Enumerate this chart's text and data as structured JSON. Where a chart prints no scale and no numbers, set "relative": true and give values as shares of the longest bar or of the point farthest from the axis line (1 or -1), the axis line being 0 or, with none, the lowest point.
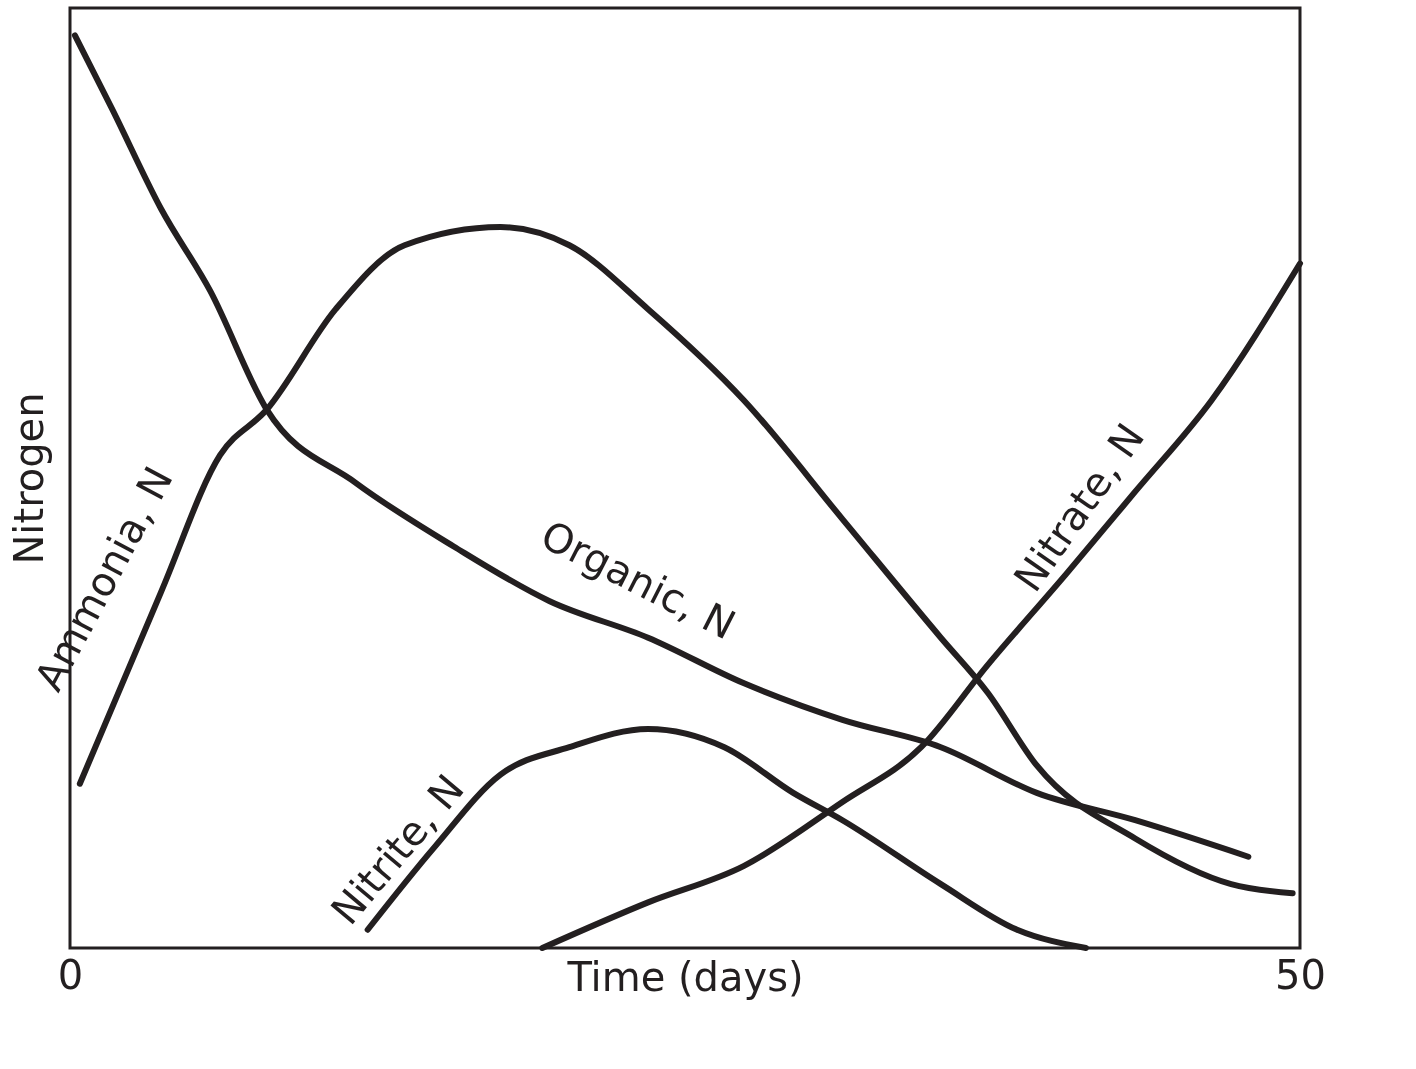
{
  "chart_data": {
    "type": "line",
    "relative": true,
    "xlabel": "Time (days)",
    "ylabel": "Nitrogen",
    "xlim": [
      0,
      50
    ],
    "xticks": [
      0,
      50
    ],
    "grid": false,
    "legend": false,
    "marker": "none",
    "line_style": "solid",
    "series": [
      {
        "name": "Organic, N",
        "color": "#231f20",
        "x": [
          0.2,
          1.7,
          3.7,
          5.7,
          8.0,
          11.6,
          15.6,
          19.5,
          23.5,
          27.4,
          31.4,
          35.4,
          39.3,
          43.3,
          47.9
        ],
        "values": [
          1.0,
          0.92,
          0.81,
          0.72,
          0.59,
          0.51,
          0.44,
          0.38,
          0.34,
          0.29,
          0.25,
          0.22,
          0.17,
          0.14,
          0.1
        ]
      },
      {
        "name": "Ammonia, N",
        "color": "#231f20",
        "x": [
          0.4,
          3.7,
          6.1,
          8.0,
          10.8,
          13.6,
          17.5,
          20.3,
          23.5,
          27.4,
          31.4,
          35.4,
          37.3,
          39.3,
          43.3,
          47.2,
          49.7
        ],
        "values": [
          0.18,
          0.39,
          0.54,
          0.59,
          0.7,
          0.77,
          0.79,
          0.77,
          0.7,
          0.6,
          0.47,
          0.34,
          0.28,
          0.2,
          0.12,
          0.07,
          0.06
        ]
      },
      {
        "name": "Nitrite, N",
        "color": "#231f20",
        "x": [
          12.1,
          14.8,
          17.5,
          20.3,
          23.5,
          26.6,
          29.4,
          31.4,
          35.4,
          38.5,
          41.3
        ],
        "values": [
          0.02,
          0.11,
          0.19,
          0.22,
          0.24,
          0.22,
          0.17,
          0.14,
          0.07,
          0.02,
          0.0
        ]
      },
      {
        "name": "Nitrate, N",
        "color": "#231f20",
        "x": [
          19.2,
          23.5,
          27.4,
          31.4,
          34.6,
          37.3,
          40.5,
          43.3,
          46.4,
          50.0
        ],
        "values": [
          0.0,
          0.05,
          0.09,
          0.16,
          0.22,
          0.31,
          0.41,
          0.5,
          0.6,
          0.75
        ]
      }
    ]
  }
}
